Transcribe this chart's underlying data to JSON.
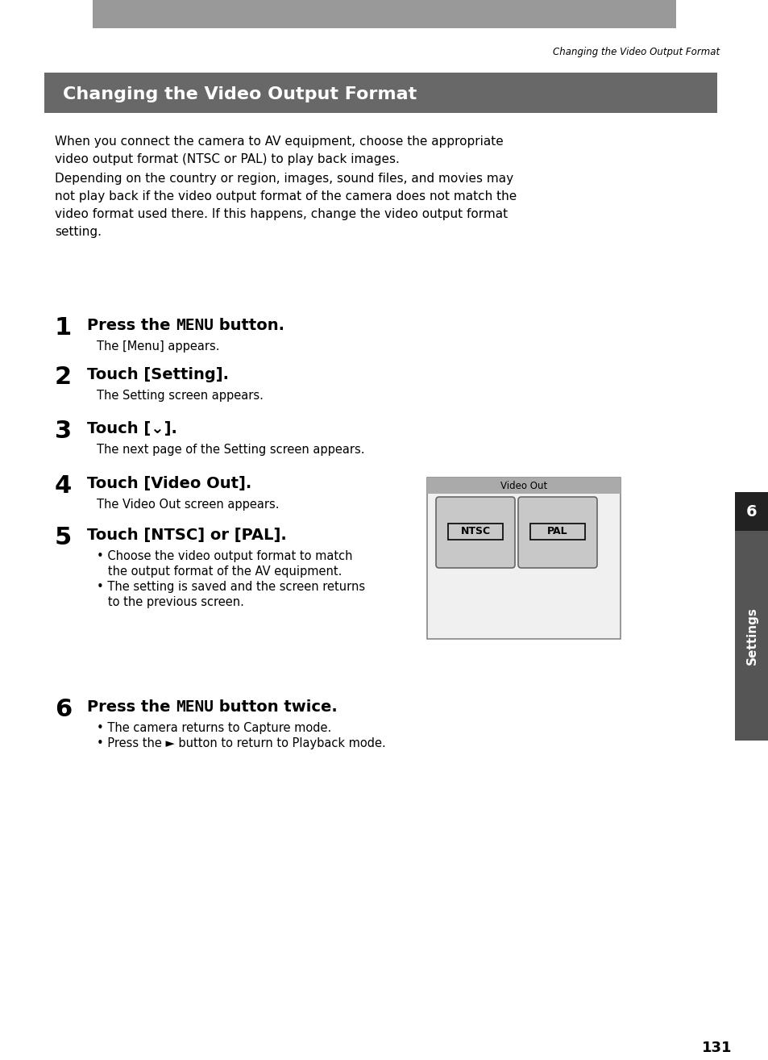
{
  "page_title_italic": "Changing the Video Output Format",
  "header_bar_color": "#999999",
  "section_title": "Changing the Video Output Format",
  "section_title_bg": "#686868",
  "section_title_color": "#ffffff",
  "body_para1_lines": [
    "When you connect the camera to AV equipment, choose the appropriate",
    "video output format (NTSC or PAL) to play back images."
  ],
  "body_para2_lines": [
    "Depending on the country or region, images, sound files, and movies may",
    "not play back if the video output format of the camera does not match the",
    "video format used there. If this happens, change the video output format",
    "setting."
  ],
  "steps": [
    {
      "number": "1",
      "heading_pre": "Press the ",
      "heading_bold": "MENU",
      "heading_post": " button.",
      "sub_lines": [
        "The [Menu] appears."
      ]
    },
    {
      "number": "2",
      "heading_pre": "Touch [Setting].",
      "heading_bold": "",
      "heading_post": "",
      "sub_lines": [
        "The Setting screen appears."
      ]
    },
    {
      "number": "3",
      "heading_pre": "Touch [⌄].",
      "heading_bold": "",
      "heading_post": "",
      "sub_lines": [
        "The next page of the Setting screen appears."
      ]
    },
    {
      "number": "4",
      "heading_pre": "Touch [Video Out].",
      "heading_bold": "",
      "heading_post": "",
      "sub_lines": [
        "The Video Out screen appears."
      ]
    },
    {
      "number": "5",
      "heading_pre": "Touch [NTSC] or [PAL].",
      "heading_bold": "",
      "heading_post": "",
      "sub_lines": [
        "• Choose the video output format to match",
        "   the output format of the AV equipment.",
        "• The setting is saved and the screen returns",
        "   to the previous screen."
      ]
    },
    {
      "number": "6",
      "heading_pre": "Press the ",
      "heading_bold": "MENU",
      "heading_post": " button twice.",
      "sub_lines": [
        "• The camera returns to Capture mode.",
        "• Press the ► button to return to Playback mode."
      ]
    }
  ],
  "sidebar_label": "Settings",
  "sidebar_number": "6",
  "sidebar_bg": "#555555",
  "sidebar_num_bg": "#222222",
  "page_number": "131",
  "bg_color": "#ffffff",
  "text_color": "#000000",
  "video_out_title": "Video Out",
  "video_out_outer_bg": "#f0f0f0",
  "video_out_title_bg": "#aaaaaa",
  "video_out_border": "#888888",
  "button_bg": "#c8c8c8",
  "button_border": "#666666"
}
